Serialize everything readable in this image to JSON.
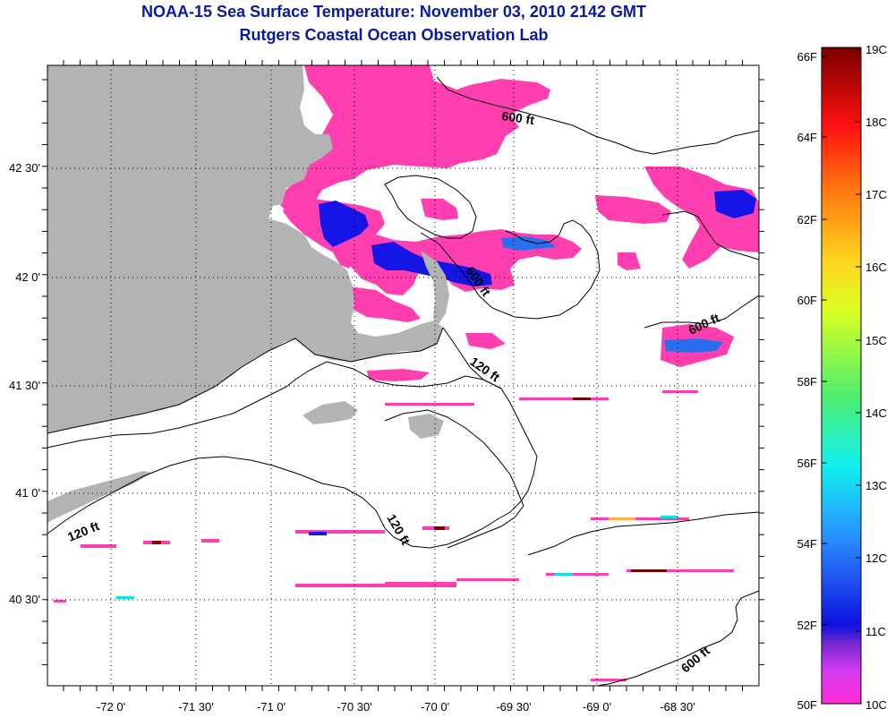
{
  "header": {
    "title": "NOAA-15 Sea Surface Temperature:  November 03, 2010 2142 GMT",
    "subtitle": "Rutgers Coastal Ocean Observation Lab"
  },
  "map": {
    "lat_labels": [
      "42 30'",
      "42 0'",
      "41 30'",
      "41 0'",
      "40 30'"
    ],
    "lon_labels": [
      "-72 0'",
      "-71 30'",
      "-71 0'",
      "-70 30'",
      "-70 0'",
      "-69 30'",
      "-69 0'",
      "-68 30'"
    ],
    "isobath_labels": [
      "600 ft",
      "600 ft",
      "600 ft",
      "120 ft",
      "120 ft",
      "120 ft",
      "600 ft"
    ],
    "colors": {
      "land": "#b3b3b3",
      "ocean": "#ffffff",
      "contour": "#000000",
      "grid": "#000000",
      "cold_10c": "#ff3fb0",
      "sst_11c": "#1010e0"
    }
  },
  "colorbar": {
    "fahrenheit_labels": [
      "66F",
      "64F",
      "62F",
      "60F",
      "58F",
      "56F",
      "54F",
      "52F",
      "50F"
    ],
    "celsius_labels": [
      "19C",
      "18C",
      "17C",
      "16C",
      "15C",
      "14C",
      "13C",
      "12C",
      "11C",
      "10C"
    ]
  }
}
